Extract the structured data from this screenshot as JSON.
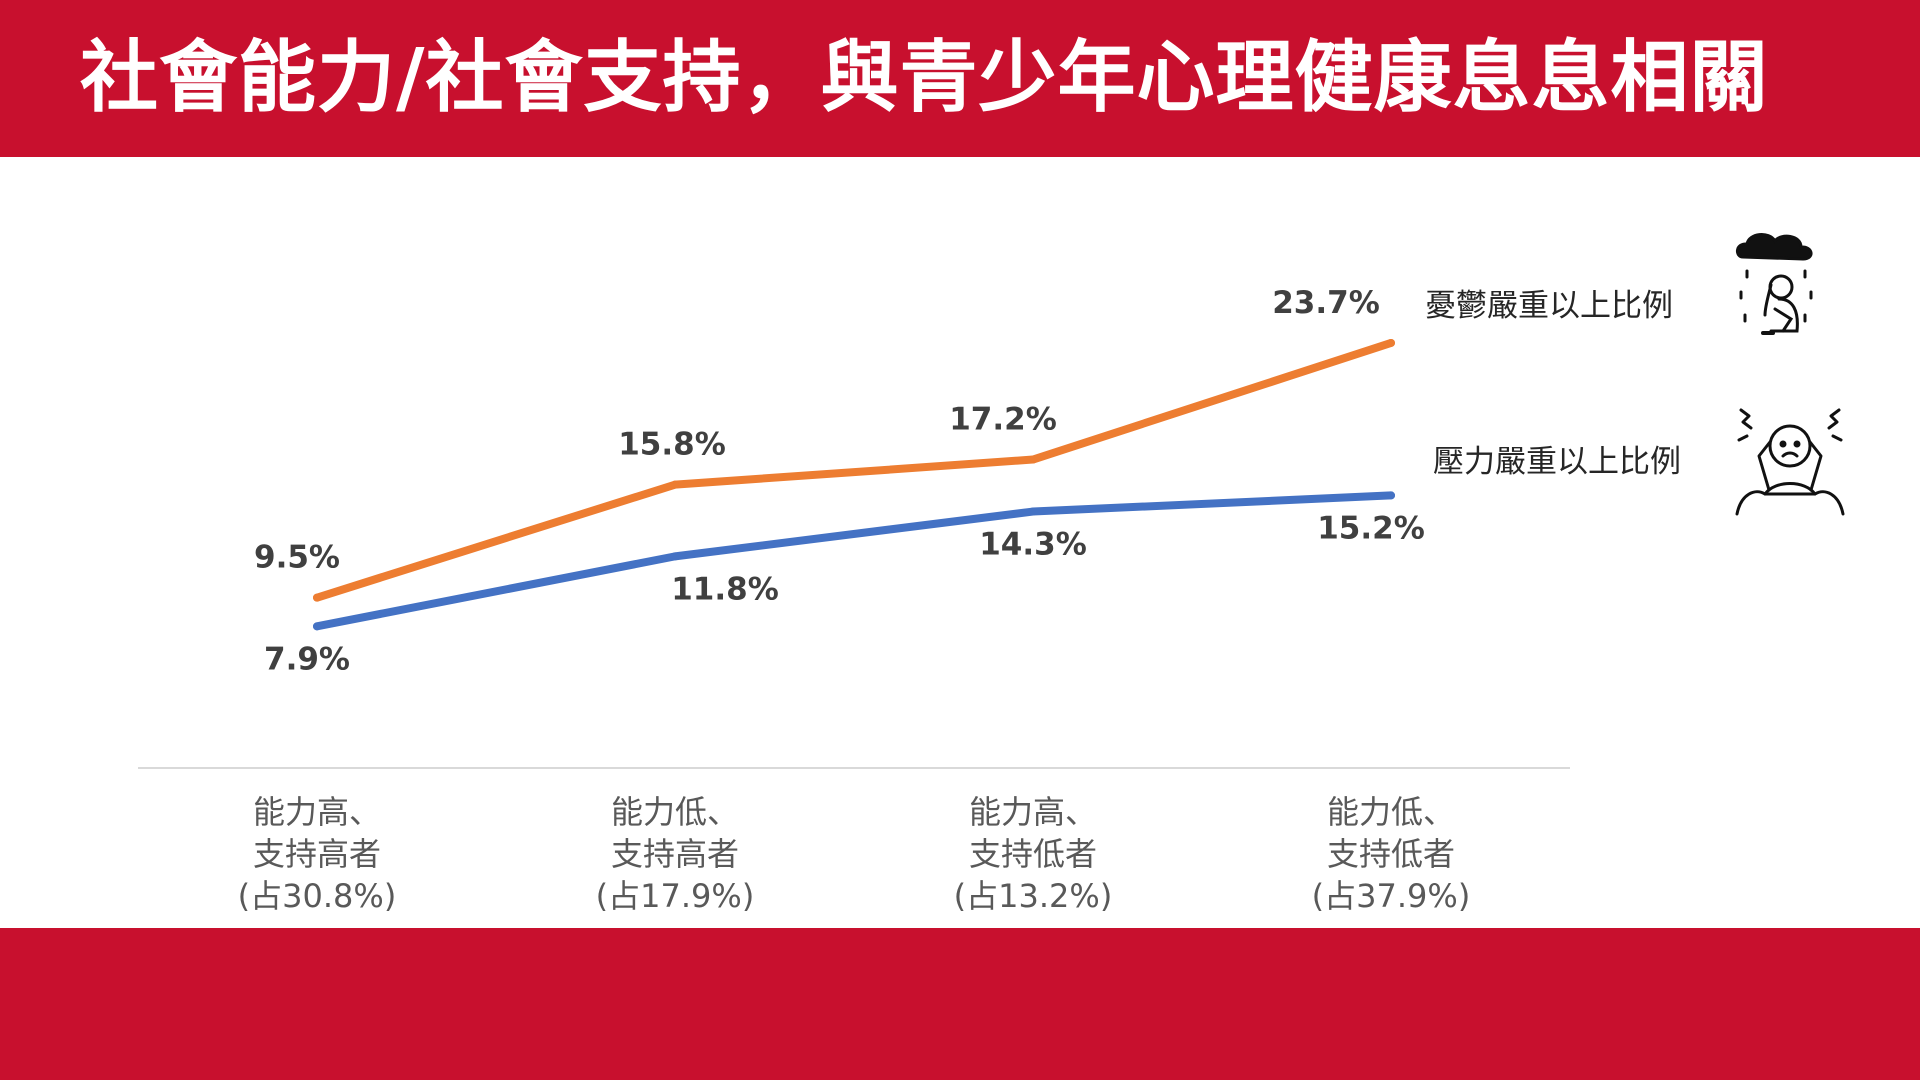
{
  "slide": {
    "title": "社會能力/社會支持，與青少年心理健康息息相關",
    "brand_color": "#c8102e"
  },
  "chart_data": {
    "type": "line",
    "categories": [
      [
        "能力高、",
        "支持高者",
        "(占30.8%)"
      ],
      [
        "能力低、",
        "支持高者",
        "(占17.9%)"
      ],
      [
        "能力高、",
        "支持低者",
        "(占13.2%)"
      ],
      [
        "能力低、",
        "支持低者",
        "(占37.9%)"
      ]
    ],
    "series": [
      {
        "name": "憂鬱嚴重以上比例",
        "color": "#ed7d31",
        "values": [
          9.5,
          15.8,
          17.2,
          23.7
        ],
        "labels": [
          "9.5%",
          "15.8%",
          "17.2%",
          "23.7%"
        ],
        "icon": "sad-person-rain-icon"
      },
      {
        "name": "壓力嚴重以上比例",
        "color": "#4472c4",
        "values": [
          7.9,
          11.8,
          14.3,
          15.2
        ],
        "labels": [
          "7.9%",
          "11.8%",
          "14.3%",
          "15.2%"
        ],
        "icon": "stressed-person-icon"
      }
    ],
    "ylim": [
      0,
      30
    ],
    "grid": false,
    "legend": "right, beside line ends"
  }
}
